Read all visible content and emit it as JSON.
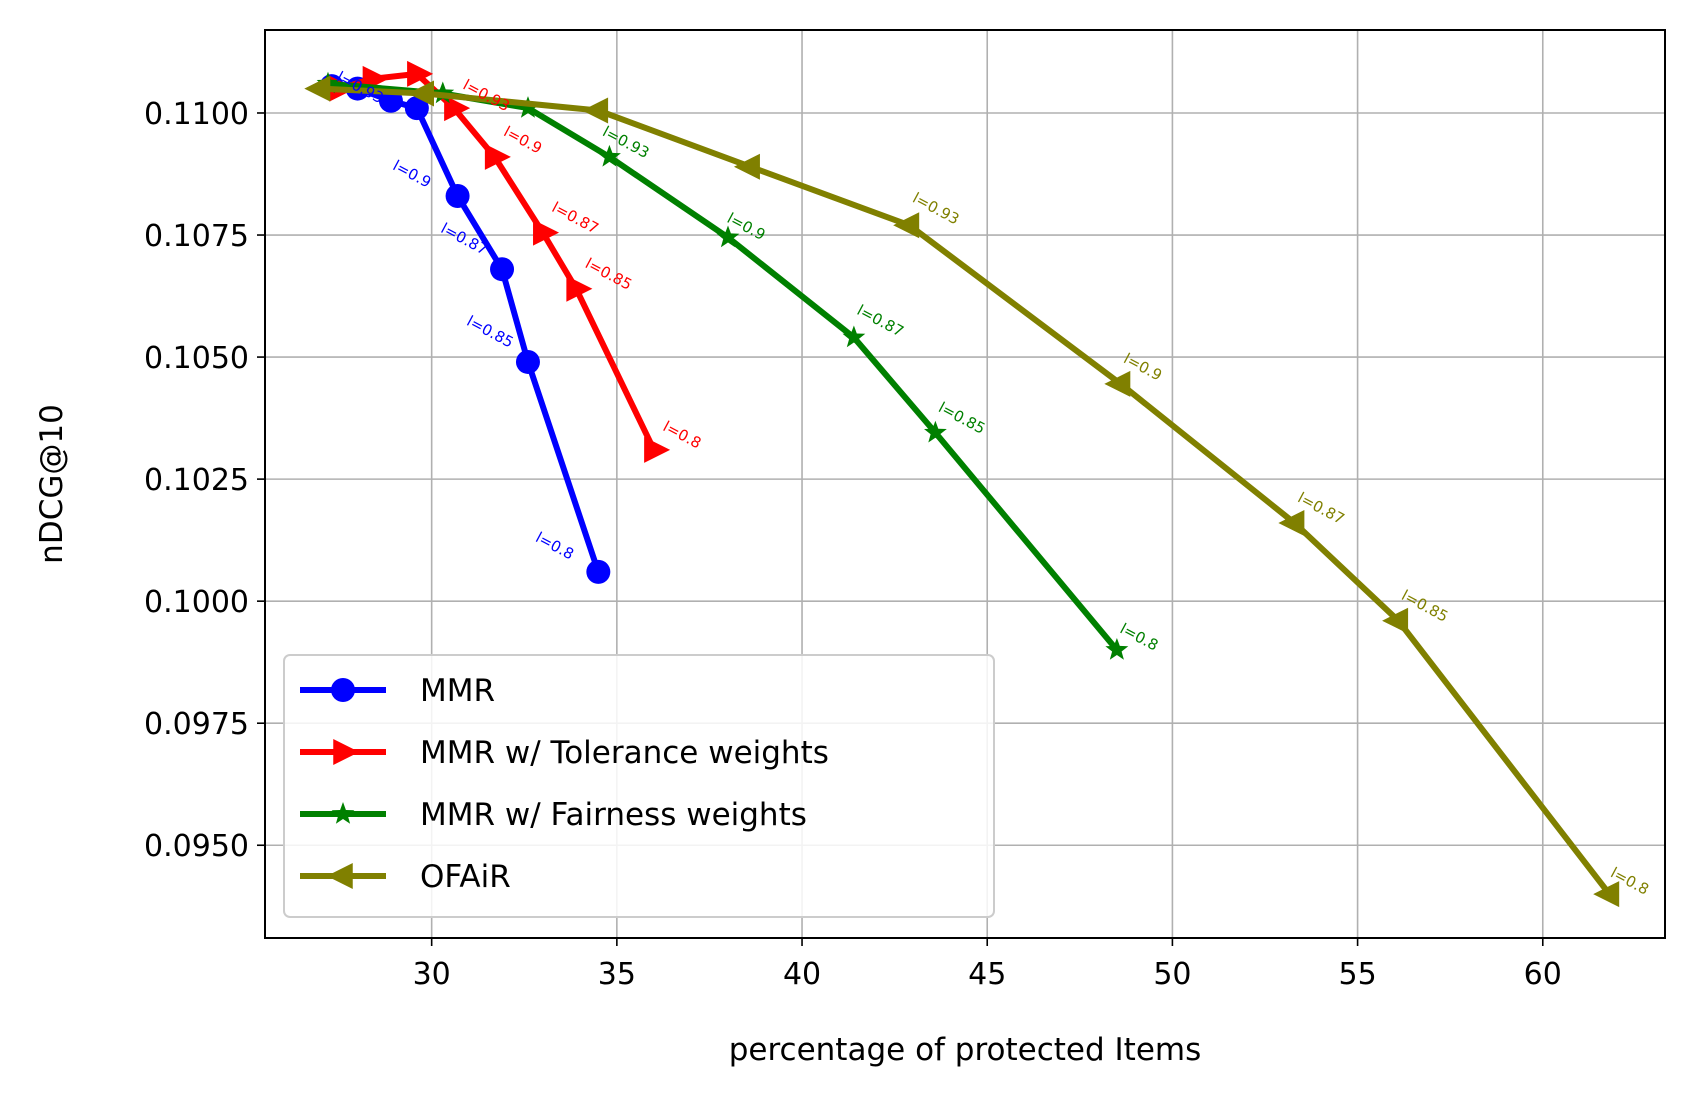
{
  "chart_data": {
    "type": "line",
    "title": "",
    "xlabel": "percentage of protected Items",
    "ylabel": "nDCG@10",
    "xlim": [
      25.5,
      63.3
    ],
    "ylim": [
      0.0931,
      0.1117
    ],
    "xticks": [
      {
        "value": 30,
        "label": "30"
      },
      {
        "value": 35,
        "label": "35"
      },
      {
        "value": 40,
        "label": "40"
      },
      {
        "value": 45,
        "label": "45"
      },
      {
        "value": 50,
        "label": "50"
      },
      {
        "value": 55,
        "label": "55"
      },
      {
        "value": 60,
        "label": "60"
      }
    ],
    "yticks": [
      {
        "value": 0.095,
        "label": "0.0950"
      },
      {
        "value": 0.0975,
        "label": "0.0975"
      },
      {
        "value": 0.1,
        "label": "0.1000"
      },
      {
        "value": 0.1025,
        "label": "0.1025"
      },
      {
        "value": 0.105,
        "label": "0.1050"
      },
      {
        "value": 0.1075,
        "label": "0.1075"
      },
      {
        "value": 0.11,
        "label": "0.1100"
      }
    ],
    "grid": true,
    "legend_position": "lower-left",
    "series": [
      {
        "name": "MMR",
        "color": "#0000ff",
        "marker": "circle",
        "x": [
          27.3,
          28.0,
          28.9,
          29.6,
          30.7,
          31.9,
          32.6,
          34.5
        ],
        "y": [
          0.11055,
          0.1105,
          0.11025,
          0.1101,
          0.1083,
          0.1068,
          0.1049,
          0.1006
        ],
        "labels": [
          {
            "text": "l=0.93",
            "idx": 0,
            "anchor": "start",
            "dx": 4,
            "dy": -6
          },
          {
            "text": "l=0.9",
            "idx": 4,
            "anchor": "end",
            "dx": -30,
            "dy": -8
          },
          {
            "text": "l=0.87",
            "idx": 5,
            "anchor": "end",
            "dx": -18,
            "dy": -14
          },
          {
            "text": "l=0.85",
            "idx": 6,
            "anchor": "end",
            "dx": -18,
            "dy": -14
          },
          {
            "text": "l=0.8",
            "idx": 7,
            "anchor": "end",
            "dx": -28,
            "dy": -12
          }
        ]
      },
      {
        "name": "MMR w/ Tolerance weights",
        "color": "#ff0000",
        "marker": "triangle-right",
        "x": [
          27.5,
          28.4,
          29.6,
          30.6,
          31.7,
          33.0,
          33.9,
          36.0
        ],
        "y": [
          0.1105,
          0.1107,
          0.1108,
          0.1101,
          0.1091,
          0.10755,
          0.1064,
          0.1031
        ],
        "labels": [
          {
            "text": "l=0.93",
            "idx": 3,
            "anchor": "start",
            "dx": 8,
            "dy": -20
          },
          {
            "text": "l=0.9",
            "idx": 4,
            "anchor": "start",
            "dx": 8,
            "dy": -22
          },
          {
            "text": "l=0.87",
            "idx": 5,
            "anchor": "start",
            "dx": 8,
            "dy": -22
          },
          {
            "text": "l=0.85",
            "idx": 6,
            "anchor": "start",
            "dx": 8,
            "dy": -22
          },
          {
            "text": "l=0.8",
            "idx": 7,
            "anchor": "start",
            "dx": 8,
            "dy": -20
          }
        ]
      },
      {
        "name": "MMR w/ Fairness weights",
        "color": "#008000",
        "marker": "star",
        "x": [
          27.2,
          30.3,
          32.6,
          34.8,
          38.0,
          41.4,
          43.6,
          48.5
        ],
        "y": [
          0.1106,
          0.1104,
          0.1101,
          0.1091,
          0.10745,
          0.1054,
          0.10345,
          0.099
        ],
        "labels": [
          {
            "text": "l=0.93",
            "idx": 3,
            "anchor": "start",
            "dx": -8,
            "dy": -22
          },
          {
            "text": "l=0.9",
            "idx": 4,
            "anchor": "start",
            "dx": -2,
            "dy": -16
          },
          {
            "text": "l=0.87",
            "idx": 5,
            "anchor": "start",
            "dx": 2,
            "dy": -24
          },
          {
            "text": "l=0.85",
            "idx": 6,
            "anchor": "start",
            "dx": 2,
            "dy": -22
          },
          {
            "text": "l=0.8",
            "idx": 7,
            "anchor": "start",
            "dx": 2,
            "dy": -18
          }
        ]
      },
      {
        "name": "OFAiR",
        "color": "#808000",
        "marker": "triangle-left",
        "x": [
          27.0,
          29.8,
          34.5,
          38.6,
          42.9,
          48.6,
          53.3,
          56.1,
          61.8
        ],
        "y": [
          0.1105,
          0.1104,
          0.11005,
          0.1089,
          0.1077,
          0.10445,
          0.1016,
          0.0996,
          0.094
        ],
        "labels": [
          {
            "text": "l=0.93",
            "idx": 4,
            "anchor": "start",
            "dx": 2,
            "dy": -24
          },
          {
            "text": "l=0.9",
            "idx": 5,
            "anchor": "start",
            "dx": 2,
            "dy": -22
          },
          {
            "text": "l=0.87",
            "idx": 6,
            "anchor": "start",
            "dx": 2,
            "dy": -22
          },
          {
            "text": "l=0.85",
            "idx": 7,
            "anchor": "start",
            "dx": 2,
            "dy": -22
          },
          {
            "text": "l=0.8",
            "idx": 8,
            "anchor": "start",
            "dx": 0,
            "dy": -18
          }
        ]
      }
    ]
  }
}
